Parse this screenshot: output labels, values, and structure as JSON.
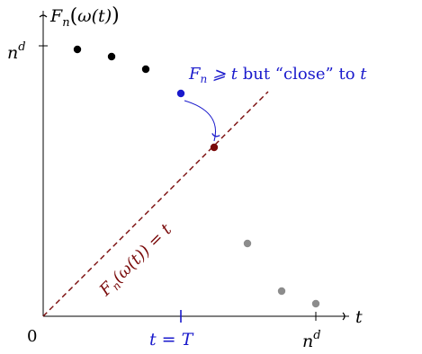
{
  "axes": {
    "y_label": {
      "base": "F",
      "sub": "n",
      "arg_open": "(",
      "arg": "ω(t)",
      "arg_close": ")"
    },
    "x_label": "t",
    "origin_label": "0",
    "y_tick": {
      "base": "n",
      "sup": "d"
    },
    "x_tick": {
      "base": "n",
      "sup": "d"
    },
    "t_marker": "t = T"
  },
  "annotation": {
    "math_part": "F",
    "math_sub": "n",
    "relation": " ⩾ t",
    "text": " but “close” to ",
    "tail": "t"
  },
  "diagonal_label": {
    "base": "F",
    "sub": "n",
    "arg": "(ω(t))",
    "rest": " = t"
  },
  "colors": {
    "axis": "#000000",
    "black_point": "#000000",
    "highlight": "#1a1acc",
    "diagonal": "#7a0a0a",
    "grey_point": "#8c8c8c"
  },
  "points": {
    "black": 3,
    "grey": 3,
    "highlight": 1,
    "landing": 1
  }
}
